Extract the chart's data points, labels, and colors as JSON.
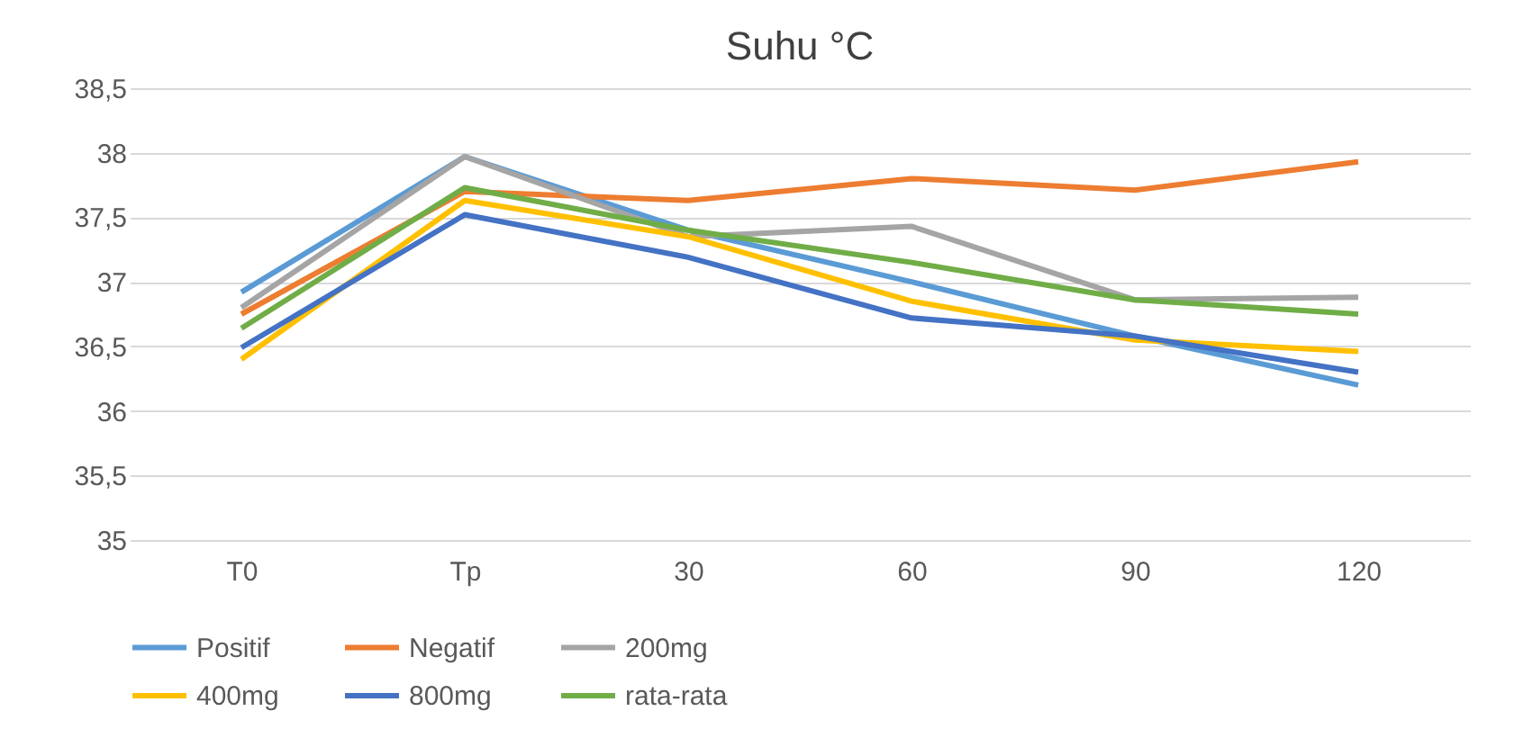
{
  "chart_data": {
    "type": "line",
    "title": "Suhu °C",
    "categories": [
      "T0",
      "Tp",
      "30",
      "60",
      "90",
      "120"
    ],
    "series": [
      {
        "name": "Positif",
        "color": "#5b9bd5",
        "values": [
          36.92,
          37.97,
          37.4,
          37.0,
          36.58,
          36.2
        ]
      },
      {
        "name": "Negatif",
        "color": "#ed7d31",
        "values": [
          36.75,
          37.7,
          37.63,
          37.8,
          37.71,
          37.93
        ]
      },
      {
        "name": "200mg",
        "color": "#a5a5a5",
        "values": [
          36.8,
          37.97,
          37.35,
          37.43,
          36.86,
          36.88
        ]
      },
      {
        "name": "400mg",
        "color": "#ffc000",
        "values": [
          36.4,
          37.63,
          37.35,
          36.85,
          36.55,
          36.46
        ]
      },
      {
        "name": "800mg",
        "color": "#4472c4",
        "values": [
          36.49,
          37.52,
          37.19,
          36.72,
          36.58,
          36.3
        ]
      },
      {
        "name": "rata-rata",
        "color": "#70ad47",
        "values": [
          36.64,
          37.73,
          37.4,
          37.15,
          36.86,
          36.75
        ]
      }
    ],
    "ylim": [
      35,
      38.5
    ],
    "yticks": [
      {
        "value": 35,
        "label": "35"
      },
      {
        "value": 35.5,
        "label": "35,5"
      },
      {
        "value": 36,
        "label": "36"
      },
      {
        "value": 36.5,
        "label": "36,5"
      },
      {
        "value": 37,
        "label": "37"
      },
      {
        "value": 37.5,
        "label": "37,5"
      },
      {
        "value": 38,
        "label": "38"
      },
      {
        "value": 38.5,
        "label": "38,5"
      }
    ],
    "grid": "y",
    "legend": "bottom",
    "marker": "none",
    "line_style": "solid"
  }
}
